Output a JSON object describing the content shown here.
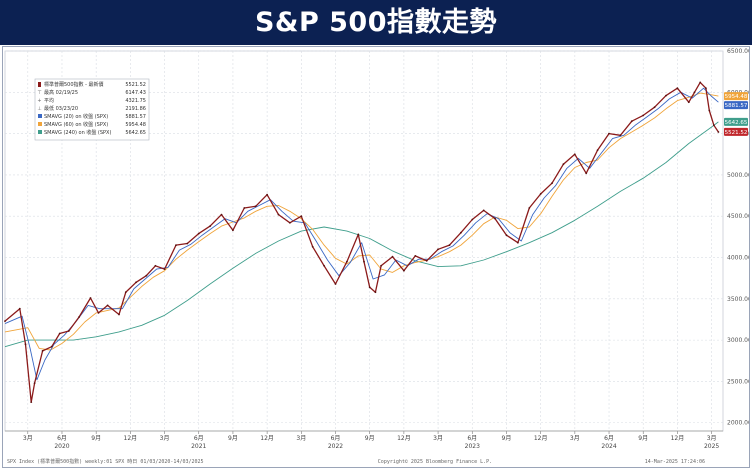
{
  "banner": {
    "title": "S&P 500指數走勢"
  },
  "chart_data": {
    "type": "line",
    "title": "S&P 500指數走勢",
    "ylim": [
      1900,
      6500
    ],
    "y_ticks": [
      "6500.00",
      "6000.00",
      "5500.00",
      "5000.00",
      "4500.00",
      "4000.00",
      "3500.00",
      "3000.00",
      "2500.00",
      "2000.00"
    ],
    "x_months": [
      {
        "label": "3月",
        "t": 2.0
      },
      {
        "label": "6月",
        "t": 5.0
      },
      {
        "label": "9月",
        "t": 8.0
      },
      {
        "label": "12月",
        "t": 11.0
      },
      {
        "label": "3月",
        "t": 14.0
      },
      {
        "label": "6月",
        "t": 17.0
      },
      {
        "label": "9月",
        "t": 20.0
      },
      {
        "label": "12月",
        "t": 23.0
      },
      {
        "label": "3月",
        "t": 26.0
      },
      {
        "label": "6月",
        "t": 29.0
      },
      {
        "label": "9月",
        "t": 32.0
      },
      {
        "label": "12月",
        "t": 35.0
      },
      {
        "label": "3月",
        "t": 38.0
      },
      {
        "label": "6月",
        "t": 41.0
      },
      {
        "label": "9月",
        "t": 44.0
      },
      {
        "label": "12月",
        "t": 47.0
      },
      {
        "label": "3月",
        "t": 50.0
      },
      {
        "label": "6月",
        "t": 53.0
      },
      {
        "label": "9月",
        "t": 56.0
      },
      {
        "label": "12月",
        "t": 59.0
      },
      {
        "label": "3月",
        "t": 62.0
      }
    ],
    "x_years": [
      {
        "label": "2020",
        "t": 5.0
      },
      {
        "label": "2021",
        "t": 17.0
      },
      {
        "label": "2022",
        "t": 29.0
      },
      {
        "label": "2023",
        "t": 41.0
      },
      {
        "label": "2024",
        "t": 53.0
      },
      {
        "label": "2025",
        "t": 62.0
      }
    ],
    "legend": {
      "position": "top-left",
      "rows": [
        {
          "marker": "candle",
          "label": "標準普爾500指數 - 最新價",
          "value": "5521.52",
          "color": "#8b1a1a"
        },
        {
          "marker": "text",
          "symbol": "⊤",
          "label": "最高 02/19/25",
          "value": "6147.43",
          "color": "#666666"
        },
        {
          "marker": "text",
          "symbol": "+",
          "label": "平均",
          "value": "4321.75",
          "color": "#666666"
        },
        {
          "marker": "text",
          "symbol": "⊥",
          "label": "最低 03/23/20",
          "value": "2191.86",
          "color": "#666666"
        },
        {
          "marker": "box",
          "label": "SMAVG (20) on 收盤 (SPX)",
          "value": "5881.57",
          "color": "#3a68c4"
        },
        {
          "marker": "box",
          "label": "SMAVG (60) on 收盤 (SPX)",
          "value": "5954.48",
          "color": "#f0a43a"
        },
        {
          "marker": "box",
          "label": "SMAVG (240) on 收盤 (SPX)",
          "value": "5642.65",
          "color": "#3f9e8c"
        }
      ]
    },
    "price_badges": [
      {
        "value": "5954.48",
        "color": "#f0a43a"
      },
      {
        "value": "5881.57",
        "color": "#3a68c4"
      },
      {
        "value": "5642.65",
        "color": "#3f9e8c"
      },
      {
        "value": "5521.52",
        "color": "#c0262b"
      }
    ],
    "series": [
      {
        "name": "標準普爾500指數",
        "color": "#8b1a1a",
        "points": [
          [
            0,
            3230
          ],
          [
            1.3,
            3380
          ],
          [
            1.8,
            2950
          ],
          [
            2.3,
            2250
          ],
          [
            2.6,
            2480
          ],
          [
            3.3,
            2870
          ],
          [
            4.1,
            2920
          ],
          [
            4.8,
            3080
          ],
          [
            5.6,
            3110
          ],
          [
            6.5,
            3280
          ],
          [
            7.5,
            3510
          ],
          [
            8.2,
            3330
          ],
          [
            9.0,
            3420
          ],
          [
            10.0,
            3310
          ],
          [
            10.6,
            3580
          ],
          [
            11.5,
            3700
          ],
          [
            12.4,
            3780
          ],
          [
            13.2,
            3900
          ],
          [
            14.0,
            3860
          ],
          [
            15.0,
            4150
          ],
          [
            16.0,
            4170
          ],
          [
            17.0,
            4290
          ],
          [
            18.0,
            4380
          ],
          [
            19.0,
            4520
          ],
          [
            20.0,
            4330
          ],
          [
            21.0,
            4600
          ],
          [
            22.0,
            4620
          ],
          [
            23.0,
            4760
          ],
          [
            24.0,
            4520
          ],
          [
            25.0,
            4420
          ],
          [
            26.0,
            4500
          ],
          [
            27.0,
            4130
          ],
          [
            28.0,
            3900
          ],
          [
            29.0,
            3680
          ],
          [
            30.0,
            3950
          ],
          [
            31.0,
            4280
          ],
          [
            31.5,
            3950
          ],
          [
            32.0,
            3640
          ],
          [
            32.5,
            3580
          ],
          [
            33.0,
            3900
          ],
          [
            34.0,
            4010
          ],
          [
            35.0,
            3840
          ],
          [
            36.0,
            4020
          ],
          [
            37.0,
            3960
          ],
          [
            38.0,
            4100
          ],
          [
            39.0,
            4150
          ],
          [
            40.0,
            4300
          ],
          [
            41.0,
            4460
          ],
          [
            42.0,
            4570
          ],
          [
            43.0,
            4470
          ],
          [
            44.0,
            4270
          ],
          [
            45.0,
            4180
          ],
          [
            46.0,
            4600
          ],
          [
            47.0,
            4770
          ],
          [
            48.0,
            4900
          ],
          [
            49.0,
            5130
          ],
          [
            50.0,
            5250
          ],
          [
            51.0,
            5020
          ],
          [
            52.0,
            5300
          ],
          [
            53.0,
            5500
          ],
          [
            54.0,
            5480
          ],
          [
            55.0,
            5650
          ],
          [
            56.0,
            5720
          ],
          [
            57.0,
            5820
          ],
          [
            58.0,
            5960
          ],
          [
            59.0,
            6050
          ],
          [
            60.0,
            5880
          ],
          [
            60.5,
            6000
          ],
          [
            61.0,
            6120
          ],
          [
            61.5,
            6050
          ],
          [
            61.8,
            5780
          ],
          [
            62.2,
            5600
          ],
          [
            62.6,
            5520
          ]
        ]
      },
      {
        "name": "SMAVG (20) on 收盤 (SPX)",
        "color": "#3a68c4",
        "points": [
          [
            0,
            3200
          ],
          [
            1.5,
            3290
          ],
          [
            2.2,
            2900
          ],
          [
            2.8,
            2520
          ],
          [
            3.5,
            2760
          ],
          [
            4.3,
            2950
          ],
          [
            5.2,
            3060
          ],
          [
            6.2,
            3220
          ],
          [
            7.3,
            3420
          ],
          [
            8.3,
            3380
          ],
          [
            9.3,
            3380
          ],
          [
            10.3,
            3380
          ],
          [
            11.3,
            3620
          ],
          [
            12.3,
            3740
          ],
          [
            13.3,
            3860
          ],
          [
            14.3,
            3880
          ],
          [
            15.3,
            4090
          ],
          [
            16.3,
            4160
          ],
          [
            17.3,
            4270
          ],
          [
            18.3,
            4370
          ],
          [
            19.3,
            4470
          ],
          [
            20.3,
            4420
          ],
          [
            21.3,
            4560
          ],
          [
            22.3,
            4630
          ],
          [
            23.3,
            4700
          ],
          [
            24.3,
            4560
          ],
          [
            25.3,
            4440
          ],
          [
            26.3,
            4420
          ],
          [
            27.3,
            4200
          ],
          [
            28.3,
            3970
          ],
          [
            29.3,
            3780
          ],
          [
            30.3,
            3940
          ],
          [
            31.3,
            4180
          ],
          [
            32.3,
            3740
          ],
          [
            33.3,
            3790
          ],
          [
            34.3,
            3970
          ],
          [
            35.3,
            3900
          ],
          [
            36.3,
            3980
          ],
          [
            37.3,
            3980
          ],
          [
            38.3,
            4070
          ],
          [
            39.3,
            4140
          ],
          [
            40.3,
            4270
          ],
          [
            41.3,
            4420
          ],
          [
            42.3,
            4530
          ],
          [
            43.3,
            4470
          ],
          [
            44.3,
            4300
          ],
          [
            45.3,
            4200
          ],
          [
            46.3,
            4520
          ],
          [
            47.3,
            4720
          ],
          [
            48.3,
            4870
          ],
          [
            49.3,
            5080
          ],
          [
            50.3,
            5200
          ],
          [
            51.3,
            5080
          ],
          [
            52.3,
            5260
          ],
          [
            53.3,
            5440
          ],
          [
            54.3,
            5480
          ],
          [
            55.3,
            5600
          ],
          [
            56.3,
            5700
          ],
          [
            57.3,
            5800
          ],
          [
            58.3,
            5920
          ],
          [
            59.3,
            6000
          ],
          [
            60.3,
            5930
          ],
          [
            61.3,
            6050
          ],
          [
            62.0,
            5950
          ],
          [
            62.6,
            5880
          ]
        ]
      },
      {
        "name": "SMAVG (60) on 收盤 (SPX)",
        "color": "#f0a43a",
        "points": [
          [
            0,
            3100
          ],
          [
            2.0,
            3150
          ],
          [
            3.0,
            2900
          ],
          [
            4.0,
            2880
          ],
          [
            5.0,
            2960
          ],
          [
            6.0,
            3070
          ],
          [
            7.0,
            3220
          ],
          [
            8.0,
            3330
          ],
          [
            9.0,
            3360
          ],
          [
            10.0,
            3390
          ],
          [
            11.0,
            3520
          ],
          [
            12.0,
            3650
          ],
          [
            13.0,
            3760
          ],
          [
            14.0,
            3840
          ],
          [
            15.0,
            3980
          ],
          [
            16.0,
            4090
          ],
          [
            17.0,
            4190
          ],
          [
            18.0,
            4290
          ],
          [
            19.0,
            4380
          ],
          [
            20.0,
            4430
          ],
          [
            21.0,
            4480
          ],
          [
            22.0,
            4560
          ],
          [
            23.0,
            4620
          ],
          [
            24.0,
            4630
          ],
          [
            25.0,
            4560
          ],
          [
            26.0,
            4470
          ],
          [
            27.0,
            4340
          ],
          [
            28.0,
            4150
          ],
          [
            29.0,
            3990
          ],
          [
            30.0,
            3920
          ],
          [
            31.0,
            4020
          ],
          [
            32.0,
            4030
          ],
          [
            33.0,
            3860
          ],
          [
            34.0,
            3820
          ],
          [
            35.0,
            3900
          ],
          [
            36.0,
            3940
          ],
          [
            37.0,
            3970
          ],
          [
            38.0,
            4010
          ],
          [
            39.0,
            4070
          ],
          [
            40.0,
            4150
          ],
          [
            41.0,
            4270
          ],
          [
            42.0,
            4410
          ],
          [
            43.0,
            4490
          ],
          [
            44.0,
            4450
          ],
          [
            45.0,
            4350
          ],
          [
            46.0,
            4370
          ],
          [
            47.0,
            4530
          ],
          [
            48.0,
            4740
          ],
          [
            49.0,
            4940
          ],
          [
            50.0,
            5090
          ],
          [
            51.0,
            5150
          ],
          [
            52.0,
            5180
          ],
          [
            53.0,
            5330
          ],
          [
            54.0,
            5440
          ],
          [
            55.0,
            5520
          ],
          [
            56.0,
            5600
          ],
          [
            57.0,
            5690
          ],
          [
            58.0,
            5800
          ],
          [
            59.0,
            5900
          ],
          [
            60.0,
            5940
          ],
          [
            61.0,
            5990
          ],
          [
            62.0,
            5970
          ],
          [
            62.6,
            5954
          ]
        ]
      },
      {
        "name": "SMAVG (240) on 收盤 (SPX)",
        "color": "#3f9e8c",
        "points": [
          [
            0,
            2920
          ],
          [
            2.0,
            3000
          ],
          [
            4.0,
            3000
          ],
          [
            6.0,
            3000
          ],
          [
            8.0,
            3040
          ],
          [
            10.0,
            3100
          ],
          [
            12.0,
            3180
          ],
          [
            14.0,
            3300
          ],
          [
            16.0,
            3480
          ],
          [
            18.0,
            3680
          ],
          [
            20.0,
            3870
          ],
          [
            22.0,
            4050
          ],
          [
            24.0,
            4200
          ],
          [
            26.0,
            4320
          ],
          [
            28.0,
            4370
          ],
          [
            30.0,
            4320
          ],
          [
            32.0,
            4230
          ],
          [
            34.0,
            4080
          ],
          [
            36.0,
            3960
          ],
          [
            38.0,
            3890
          ],
          [
            40.0,
            3900
          ],
          [
            42.0,
            3970
          ],
          [
            44.0,
            4070
          ],
          [
            46.0,
            4180
          ],
          [
            48.0,
            4300
          ],
          [
            50.0,
            4450
          ],
          [
            52.0,
            4620
          ],
          [
            54.0,
            4800
          ],
          [
            56.0,
            4960
          ],
          [
            58.0,
            5150
          ],
          [
            60.0,
            5380
          ],
          [
            62.0,
            5580
          ],
          [
            62.6,
            5642
          ]
        ]
      }
    ]
  },
  "footer": {
    "left": "SPX Index (標準普爾500指數) weekly:01 SPX  時日 01/03/2020-14/03/2025",
    "center": "Copyright© 2025 Bloomberg Finance L.P.",
    "right": "14-Mar-2025 17:24:06"
  }
}
